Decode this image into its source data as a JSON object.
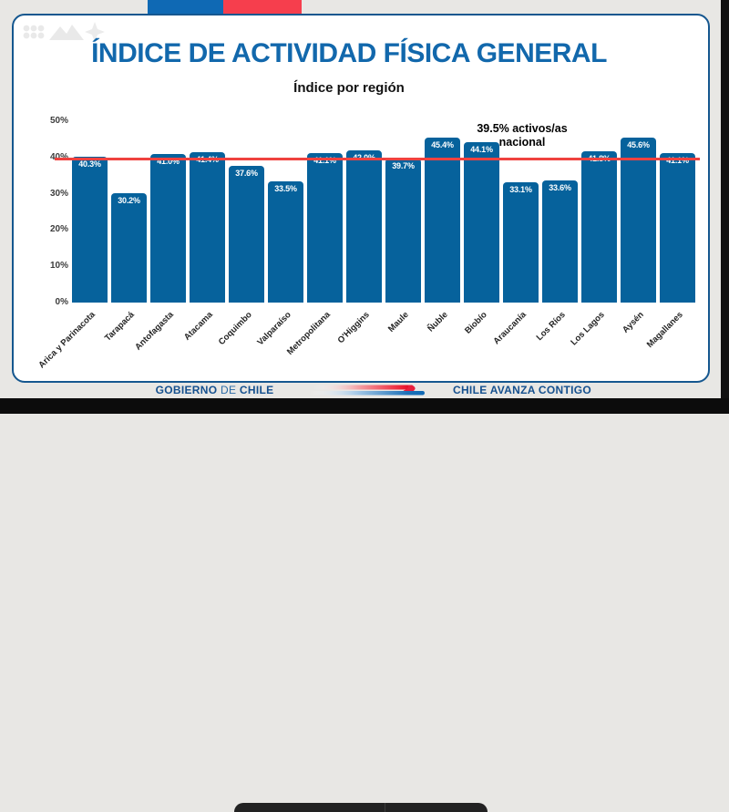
{
  "window": {
    "background_color": "#e8e7e4",
    "edge_color": "#0d0d0d"
  },
  "flag_bar": {
    "blue": "#0f69b4",
    "red": "#f63e4d"
  },
  "card": {
    "background": "#ffffff",
    "border_color": "#15578f"
  },
  "header": {
    "title": "ÍNDICE DE ACTIVIDAD FÍSICA GENERAL",
    "title_color": "#1268ac",
    "subtitle": "Índice por región"
  },
  "watermark_icons": [
    "dots-grid-icon",
    "mountains-icon",
    "sparkle-icon"
  ],
  "chart_data": {
    "type": "bar",
    "title": "Índice por región",
    "categories": [
      "Arica y Parinacota",
      "Tarapacá",
      "Antofagasta",
      "Atacama",
      "Coquimbo",
      "Valparaíso",
      "Metropolitana",
      "O'Higgins",
      "Maule",
      "Ñuble",
      "Biobío",
      "Araucanía",
      "Los Ríos",
      "Los Lagos",
      "Aysén",
      "Magallanes"
    ],
    "values": [
      40.3,
      30.2,
      41.0,
      41.4,
      37.6,
      33.5,
      41.1,
      42.0,
      39.7,
      45.4,
      44.1,
      33.1,
      33.6,
      41.8,
      45.6,
      41.1
    ],
    "value_labels": [
      "40.3%",
      "30.2%",
      "41.0%",
      "41.4%",
      "37.6%",
      "33.5%",
      "41.1%",
      "42.0%",
      "39.7%",
      "45.4%",
      "44.1%",
      "33.1%",
      "33.6%",
      "41.8%",
      "45.6%",
      "41.1%"
    ],
    "bar_color": "#06629c",
    "xlabel": "",
    "ylabel": "",
    "ylim": [
      0,
      50
    ],
    "yticks": [
      {
        "label": "50%",
        "value": 50
      },
      {
        "label": "40%",
        "value": 40
      },
      {
        "label": "30%",
        "value": 30
      },
      {
        "label": "20%",
        "value": 20
      },
      {
        "label": "10%",
        "value": 10
      },
      {
        "label": "0%",
        "value": 0
      }
    ],
    "grid": false,
    "legend": null,
    "reference_line": {
      "value": 39.5,
      "color": "#ef423f",
      "label": "39.5% activos/as nacional"
    }
  },
  "annotation": {
    "line1": "39.5% activos/as",
    "line2": "nacional"
  },
  "footer": {
    "gobierno": "GOBIERNO",
    "de": "DE",
    "chile": "CHILE",
    "slogan": "CHILE AVANZA CONTIGO",
    "text_color": "#15508e"
  }
}
